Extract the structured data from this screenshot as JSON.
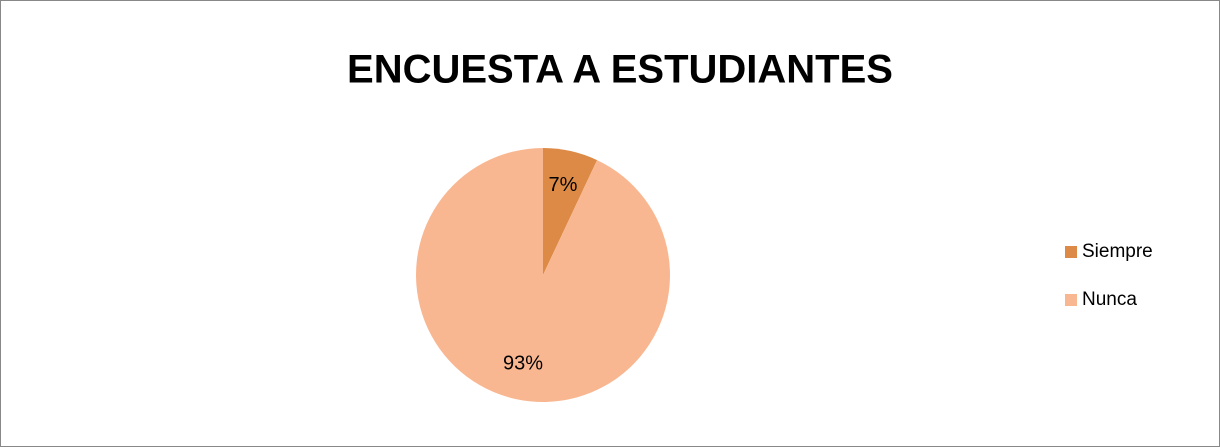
{
  "chart_data": {
    "type": "pie",
    "title": "ENCUESTA A ESTUDIANTES",
    "categories": [
      "Siempre",
      "Nunca"
    ],
    "values": [
      7,
      93
    ],
    "value_labels": [
      "7%",
      "93%"
    ],
    "colors": [
      "#dc8a45",
      "#f9b791"
    ],
    "legend": "right"
  }
}
